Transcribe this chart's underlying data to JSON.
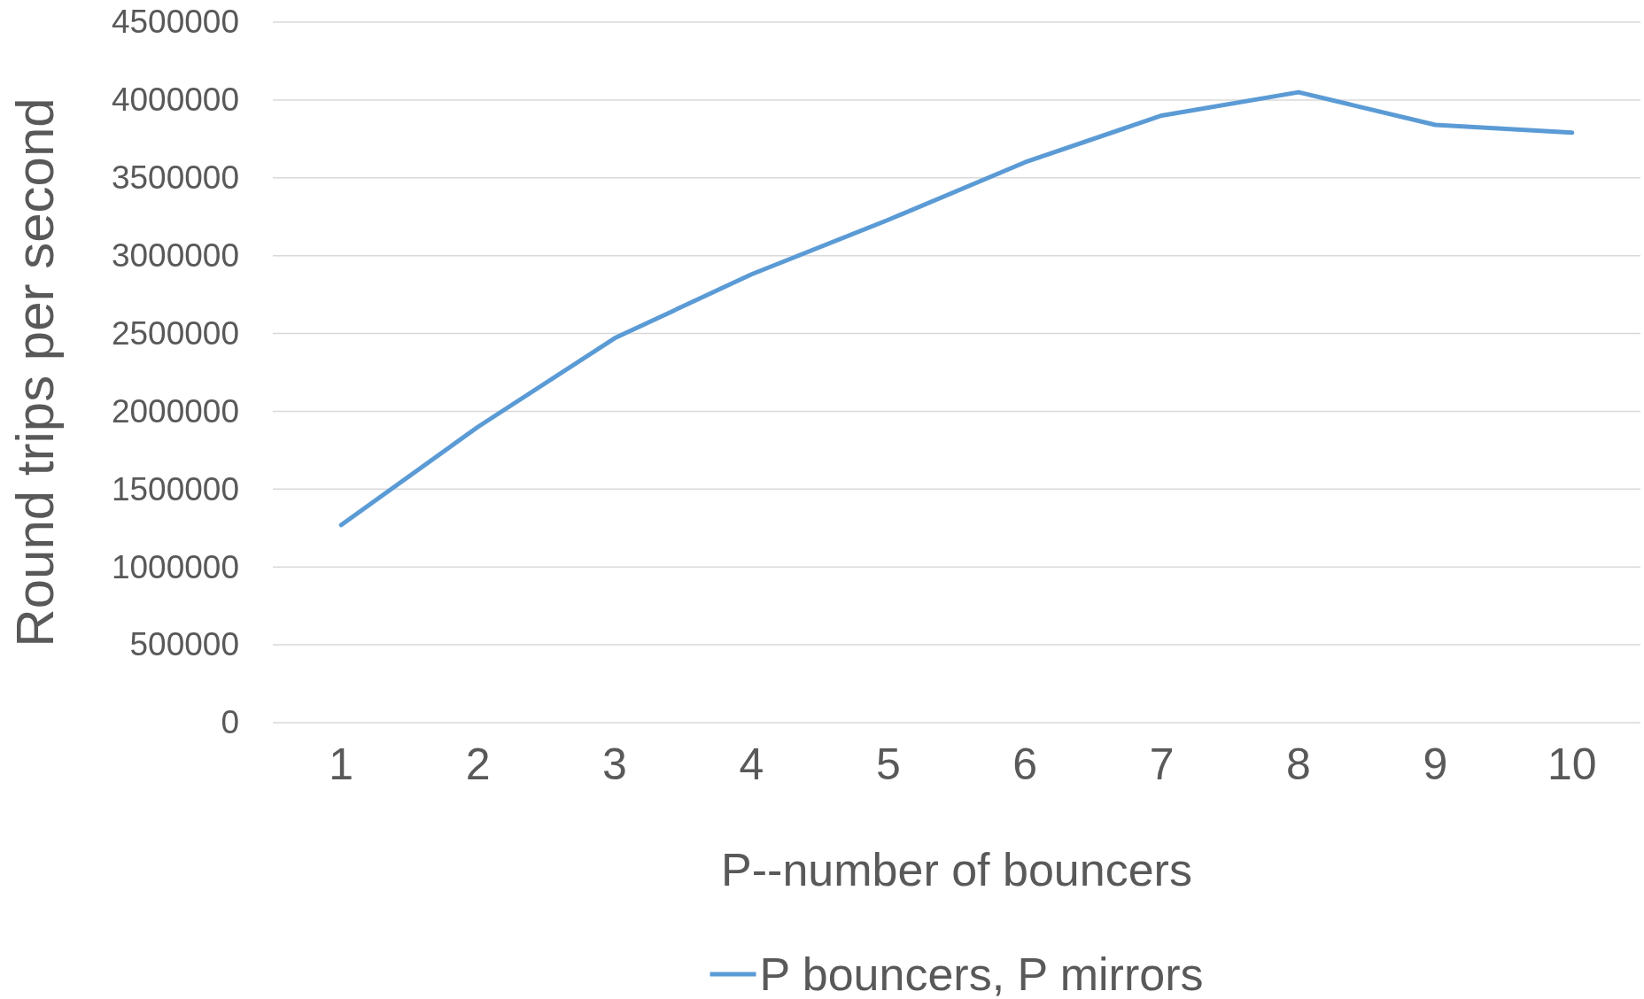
{
  "chart_data": {
    "type": "line",
    "xlabel": "P--number of bouncers",
    "ylabel": "Round trips per second",
    "categories": [
      "1",
      "2",
      "3",
      "4",
      "5",
      "6",
      "7",
      "8",
      "9",
      "10"
    ],
    "series": [
      {
        "name": "P bouncers, P mirrors",
        "color": "#5b9bd5",
        "values": [
          1270000,
          1900000,
          2470000,
          2880000,
          3230000,
          3600000,
          3900000,
          4050000,
          3840000,
          3790000
        ]
      }
    ],
    "ylim": [
      0,
      4500000
    ],
    "yticks": [
      0,
      500000,
      1000000,
      1500000,
      2000000,
      2500000,
      3000000,
      3500000,
      4000000,
      4500000
    ],
    "grid": "y",
    "legend": "bottom",
    "marker": "none",
    "line_style": "solid"
  }
}
